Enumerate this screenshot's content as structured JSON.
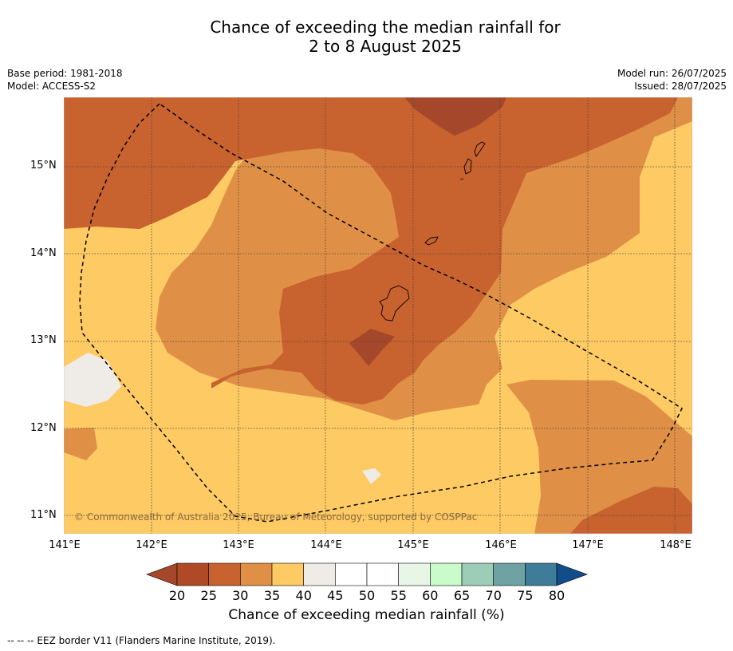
{
  "title_line1": "Chance of exceeding the median rainfall for",
  "title_line2": "2 to 8 August 2025",
  "meta": {
    "base_period": "Base period: 1981-2018",
    "model": "Model: ACCESS-S2",
    "model_run": "Model run: 26/07/2025",
    "issued": "Issued: 28/07/2025"
  },
  "axes": {
    "lat_labels": [
      "15°N",
      "14°N",
      "13°N",
      "12°N",
      "11°N"
    ],
    "lon_labels": [
      "141°E",
      "142°E",
      "143°E",
      "144°E",
      "145°E",
      "146°E",
      "147°E",
      "148°E"
    ]
  },
  "copyright": "© Commonwealth of Australia 2025, Bureau of Meteorology, supported by COSPPac",
  "colorbar": {
    "ticks": [
      "20",
      "25",
      "30",
      "35",
      "40",
      "45",
      "50",
      "55",
      "60",
      "65",
      "70",
      "75",
      "80"
    ],
    "colors": [
      "#a5472a",
      "#b04a26",
      "#c8622f",
      "#df9046",
      "#fdca63",
      "#efebe7",
      "#ffffff",
      "#ffffff",
      "#e8f6e8",
      "#c9fbcb",
      "#9dcdb7",
      "#6ea2a3",
      "#3e7c99",
      "#134c8a"
    ],
    "title": "Chance of exceeding median rainfall (%)"
  },
  "footer": "--  --  -- EEZ border V11 (Flanders Marine Institute, 2019)."
}
